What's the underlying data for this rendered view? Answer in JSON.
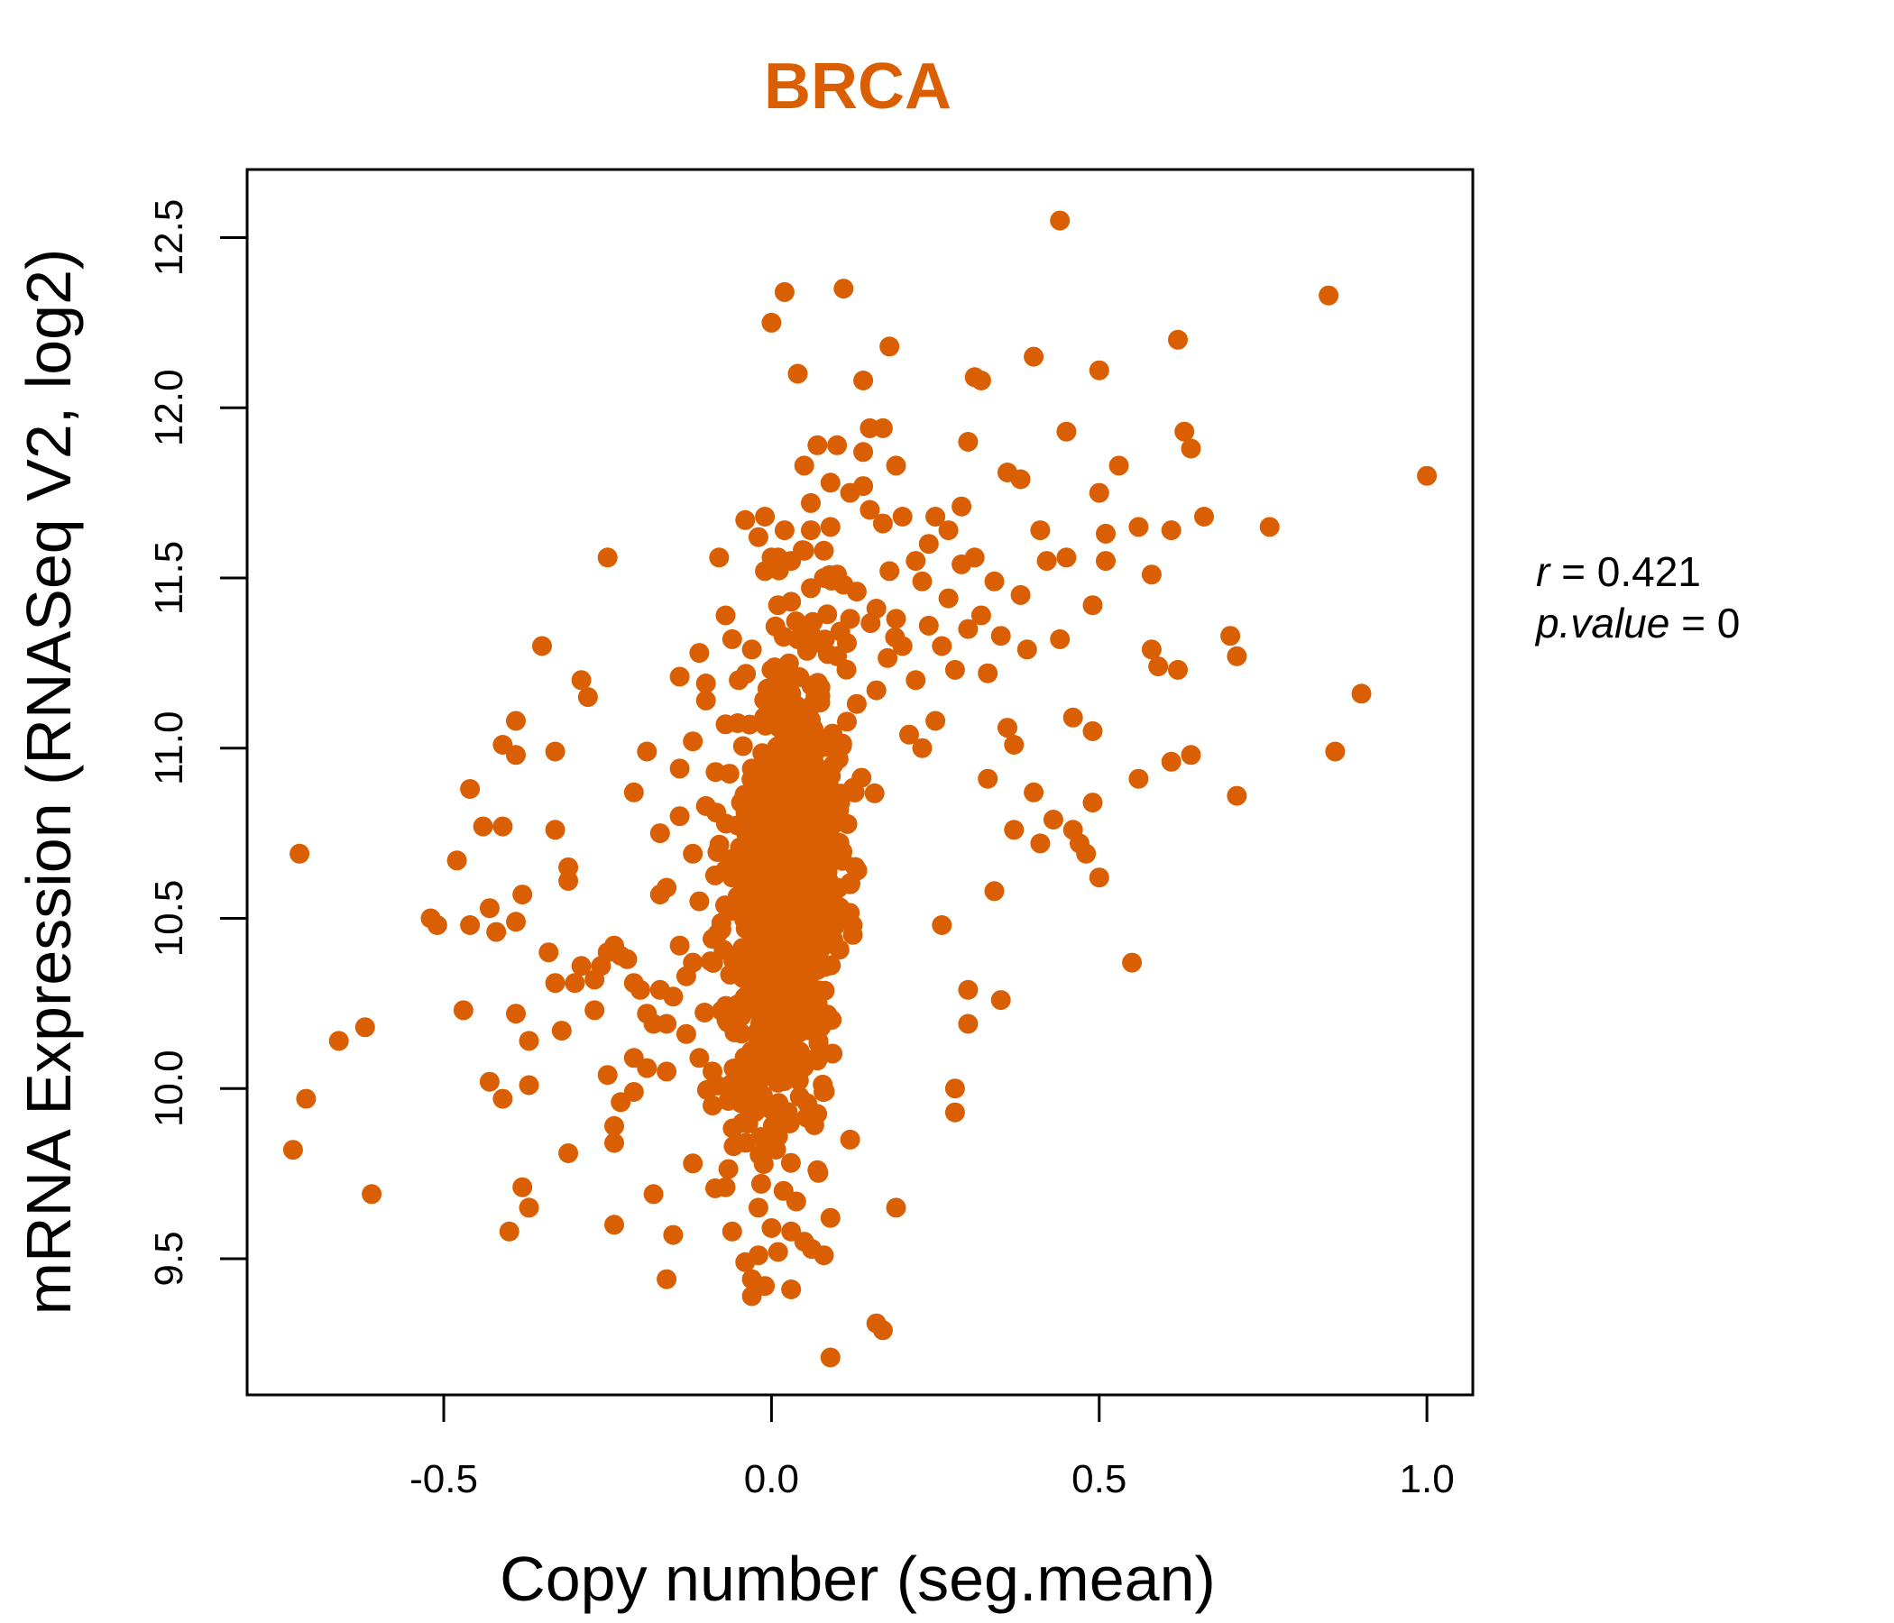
{
  "chart_data": {
    "type": "scatter",
    "title": "BRCA",
    "xlabel": "Copy number (seg.mean)",
    "ylabel": "mRNA Expression (RNASeq V2, log2)",
    "xlim": [
      -0.8,
      1.07
    ],
    "ylim": [
      9.1,
      12.7
    ],
    "x_ticks": [
      -0.5,
      0.0,
      0.5,
      1.0
    ],
    "x_tick_labels": [
      "-0.5",
      "0.0",
      "0.5",
      "1.0"
    ],
    "y_ticks": [
      9.5,
      10.0,
      10.5,
      11.0,
      11.5,
      12.0,
      12.5
    ],
    "y_tick_labels": [
      "9.5",
      "10.0",
      "10.5",
      "11.0",
      "11.5",
      "12.0",
      "12.5"
    ],
    "grid": false,
    "legend": "none",
    "stats": {
      "r_label": "r",
      "r_value": "0.421",
      "p_label": "p.value",
      "p_value": "0"
    },
    "colors": {
      "title": "#D95F02",
      "points": "#D95F02",
      "axis": "#000000"
    },
    "n_core_points": 900,
    "points": [
      [
        -0.72,
        10.69
      ],
      [
        -0.73,
        9.82
      ],
      [
        -0.71,
        9.97
      ],
      [
        -0.61,
        9.69
      ],
      [
        -0.62,
        10.18
      ],
      [
        -0.66,
        10.14
      ],
      [
        -0.52,
        10.5
      ],
      [
        -0.51,
        10.48
      ],
      [
        -0.48,
        10.67
      ],
      [
        -0.47,
        10.23
      ],
      [
        -0.46,
        10.88
      ],
      [
        -0.46,
        10.48
      ],
      [
        -0.44,
        10.77
      ],
      [
        -0.43,
        10.53
      ],
      [
        -0.43,
        10.02
      ],
      [
        -0.42,
        10.46
      ],
      [
        -0.41,
        11.01
      ],
      [
        -0.41,
        10.77
      ],
      [
        -0.41,
        9.97
      ],
      [
        -0.4,
        9.58
      ],
      [
        -0.39,
        11.08
      ],
      [
        -0.39,
        10.98
      ],
      [
        -0.39,
        10.49
      ],
      [
        -0.39,
        10.22
      ],
      [
        -0.38,
        10.57
      ],
      [
        -0.38,
        9.71
      ],
      [
        -0.37,
        10.14
      ],
      [
        -0.37,
        10.01
      ],
      [
        -0.37,
        9.65
      ],
      [
        -0.35,
        11.3
      ],
      [
        -0.34,
        10.4
      ],
      [
        -0.33,
        10.99
      ],
      [
        -0.33,
        10.76
      ],
      [
        -0.33,
        10.31
      ],
      [
        -0.32,
        10.17
      ],
      [
        -0.31,
        10.65
      ],
      [
        -0.31,
        10.61
      ],
      [
        -0.31,
        9.81
      ],
      [
        -0.3,
        10.31
      ],
      [
        -0.29,
        11.2
      ],
      [
        -0.29,
        10.36
      ],
      [
        -0.28,
        11.15
      ],
      [
        -0.27,
        10.32
      ],
      [
        -0.27,
        10.23
      ],
      [
        -0.26,
        10.36
      ],
      [
        -0.25,
        11.56
      ],
      [
        -0.25,
        10.4
      ],
      [
        -0.25,
        10.04
      ],
      [
        -0.24,
        10.42
      ],
      [
        -0.24,
        9.89
      ],
      [
        -0.24,
        9.84
      ],
      [
        -0.24,
        9.6
      ],
      [
        -0.23,
        10.39
      ],
      [
        -0.23,
        9.96
      ],
      [
        -0.22,
        10.38
      ],
      [
        -0.21,
        10.87
      ],
      [
        -0.21,
        10.31
      ],
      [
        -0.21,
        10.09
      ],
      [
        -0.21,
        9.99
      ],
      [
        -0.2,
        10.29
      ],
      [
        -0.19,
        10.06
      ],
      [
        -0.19,
        10.99
      ],
      [
        -0.19,
        10.22
      ],
      [
        -0.18,
        10.19
      ],
      [
        -0.18,
        9.69
      ],
      [
        -0.17,
        10.75
      ],
      [
        -0.17,
        10.57
      ],
      [
        -0.17,
        10.29
      ],
      [
        -0.16,
        10.59
      ],
      [
        -0.16,
        10.19
      ],
      [
        -0.16,
        10.05
      ],
      [
        -0.16,
        9.44
      ],
      [
        -0.15,
        10.27
      ],
      [
        -0.15,
        9.57
      ],
      [
        -0.14,
        11.21
      ],
      [
        -0.14,
        10.94
      ],
      [
        -0.14,
        10.8
      ],
      [
        -0.14,
        10.42
      ],
      [
        -0.13,
        10.33
      ],
      [
        -0.13,
        10.16
      ],
      [
        -0.12,
        11.02
      ],
      [
        -0.12,
        10.69
      ],
      [
        -0.12,
        10.37
      ],
      [
        -0.12,
        9.78
      ],
      [
        -0.11,
        11.28
      ],
      [
        -0.11,
        10.55
      ],
      [
        -0.11,
        10.09
      ],
      [
        -0.1,
        11.19
      ],
      [
        -0.1,
        11.14
      ],
      [
        -0.1,
        10.83
      ],
      [
        -0.09,
        10.44
      ],
      [
        -0.09,
        10.05
      ],
      [
        -0.09,
        9.95
      ],
      [
        -0.08,
        11.56
      ],
      [
        -0.07,
        11.39
      ],
      [
        -0.07,
        11.07
      ],
      [
        -0.07,
        9.71
      ],
      [
        -0.06,
        11.32
      ],
      [
        -0.06,
        10.62
      ],
      [
        -0.06,
        9.58
      ],
      [
        -0.05,
        11.2
      ],
      [
        -0.05,
        10.01
      ],
      [
        -0.04,
        11.67
      ],
      [
        -0.04,
        9.49
      ],
      [
        -0.03,
        11.29
      ],
      [
        -0.03,
        10.94
      ],
      [
        -0.03,
        9.39
      ],
      [
        -0.03,
        9.44
      ],
      [
        -0.02,
        11.62
      ],
      [
        -0.02,
        9.65
      ],
      [
        -0.02,
        9.51
      ],
      [
        -0.01,
        11.68
      ],
      [
        -0.01,
        11.52
      ],
      [
        -0.01,
        9.42
      ],
      [
        0.0,
        11.56
      ],
      [
        0.0,
        11.23
      ],
      [
        0.0,
        9.59
      ],
      [
        0.0,
        12.25
      ],
      [
        0.01,
        11.56
      ],
      [
        0.01,
        11.42
      ],
      [
        0.01,
        9.52
      ],
      [
        0.02,
        12.34
      ],
      [
        0.02,
        11.64
      ],
      [
        0.03,
        11.55
      ],
      [
        0.03,
        11.43
      ],
      [
        0.03,
        9.58
      ],
      [
        0.03,
        9.41
      ],
      [
        0.04,
        11.32
      ],
      [
        0.04,
        12.1
      ],
      [
        0.05,
        11.58
      ],
      [
        0.05,
        11.83
      ],
      [
        0.05,
        9.55
      ],
      [
        0.06,
        11.64
      ],
      [
        0.06,
        11.47
      ],
      [
        0.06,
        11.72
      ],
      [
        0.07,
        11.31
      ],
      [
        0.07,
        11.89
      ],
      [
        0.07,
        9.76
      ],
      [
        0.08,
        11.58
      ],
      [
        0.08,
        11.5
      ],
      [
        0.08,
        9.51
      ],
      [
        0.09,
        11.65
      ],
      [
        0.09,
        11.78
      ],
      [
        0.09,
        9.21
      ],
      [
        0.09,
        9.62
      ],
      [
        0.1,
        11.89
      ],
      [
        0.1,
        11.51
      ],
      [
        0.1,
        11.27
      ],
      [
        0.11,
        11.48
      ],
      [
        0.11,
        12.35
      ],
      [
        0.12,
        11.75
      ],
      [
        0.12,
        11.38
      ],
      [
        0.12,
        9.85
      ],
      [
        0.13,
        11.46
      ],
      [
        0.13,
        11.13
      ],
      [
        0.14,
        12.08
      ],
      [
        0.14,
        11.87
      ],
      [
        0.14,
        11.77
      ],
      [
        0.15,
        11.94
      ],
      [
        0.15,
        11.7
      ],
      [
        0.16,
        11.41
      ],
      [
        0.16,
        11.17
      ],
      [
        0.16,
        9.31
      ],
      [
        0.17,
        11.94
      ],
      [
        0.17,
        11.66
      ],
      [
        0.17,
        9.29
      ],
      [
        0.18,
        12.18
      ],
      [
        0.18,
        11.52
      ],
      [
        0.19,
        11.83
      ],
      [
        0.19,
        11.38
      ],
      [
        0.19,
        9.65
      ],
      [
        0.2,
        11.68
      ],
      [
        0.2,
        11.3
      ],
      [
        0.21,
        11.04
      ],
      [
        0.22,
        11.55
      ],
      [
        0.22,
        11.2
      ],
      [
        0.23,
        11.49
      ],
      [
        0.23,
        11.0
      ],
      [
        0.24,
        11.6
      ],
      [
        0.24,
        11.36
      ],
      [
        0.25,
        11.68
      ],
      [
        0.25,
        11.08
      ],
      [
        0.26,
        11.3
      ],
      [
        0.26,
        10.48
      ],
      [
        0.27,
        11.44
      ],
      [
        0.27,
        11.64
      ],
      [
        0.28,
        11.23
      ],
      [
        0.28,
        9.93
      ],
      [
        0.28,
        10.0
      ],
      [
        0.29,
        11.71
      ],
      [
        0.29,
        11.54
      ],
      [
        0.3,
        11.9
      ],
      [
        0.3,
        11.35
      ],
      [
        0.3,
        10.29
      ],
      [
        0.3,
        10.19
      ],
      [
        0.31,
        11.56
      ],
      [
        0.31,
        12.09
      ],
      [
        0.32,
        12.08
      ],
      [
        0.32,
        11.39
      ],
      [
        0.33,
        11.22
      ],
      [
        0.33,
        10.91
      ],
      [
        0.34,
        11.49
      ],
      [
        0.34,
        10.58
      ],
      [
        0.35,
        11.33
      ],
      [
        0.35,
        10.26
      ],
      [
        0.36,
        11.81
      ],
      [
        0.36,
        11.06
      ],
      [
        0.37,
        11.01
      ],
      [
        0.37,
        10.76
      ],
      [
        0.38,
        11.79
      ],
      [
        0.38,
        11.45
      ],
      [
        0.39,
        11.29
      ],
      [
        0.4,
        12.15
      ],
      [
        0.4,
        10.87
      ],
      [
        0.41,
        11.64
      ],
      [
        0.41,
        10.72
      ],
      [
        0.42,
        11.55
      ],
      [
        0.43,
        10.79
      ],
      [
        0.44,
        11.32
      ],
      [
        0.44,
        12.55
      ],
      [
        0.45,
        11.93
      ],
      [
        0.45,
        11.56
      ],
      [
        0.46,
        11.09
      ],
      [
        0.46,
        10.76
      ],
      [
        0.47,
        10.72
      ],
      [
        0.48,
        10.69
      ],
      [
        0.49,
        10.84
      ],
      [
        0.49,
        11.05
      ],
      [
        0.49,
        11.42
      ],
      [
        0.5,
        11.75
      ],
      [
        0.5,
        12.11
      ],
      [
        0.5,
        10.62
      ],
      [
        0.51,
        11.55
      ],
      [
        0.51,
        11.63
      ],
      [
        0.53,
        11.83
      ],
      [
        0.55,
        10.37
      ],
      [
        0.56,
        11.65
      ],
      [
        0.56,
        10.91
      ],
      [
        0.58,
        11.51
      ],
      [
        0.58,
        11.29
      ],
      [
        0.59,
        11.24
      ],
      [
        0.61,
        11.64
      ],
      [
        0.61,
        10.96
      ],
      [
        0.62,
        11.23
      ],
      [
        0.62,
        12.2
      ],
      [
        0.63,
        11.93
      ],
      [
        0.64,
        11.88
      ],
      [
        0.64,
        10.98
      ],
      [
        0.66,
        11.68
      ],
      [
        0.7,
        11.33
      ],
      [
        0.71,
        11.27
      ],
      [
        0.71,
        10.86
      ],
      [
        0.76,
        11.65
      ],
      [
        0.85,
        12.33
      ],
      [
        0.86,
        10.99
      ],
      [
        0.9,
        11.16
      ],
      [
        1.0,
        11.8
      ]
    ]
  }
}
